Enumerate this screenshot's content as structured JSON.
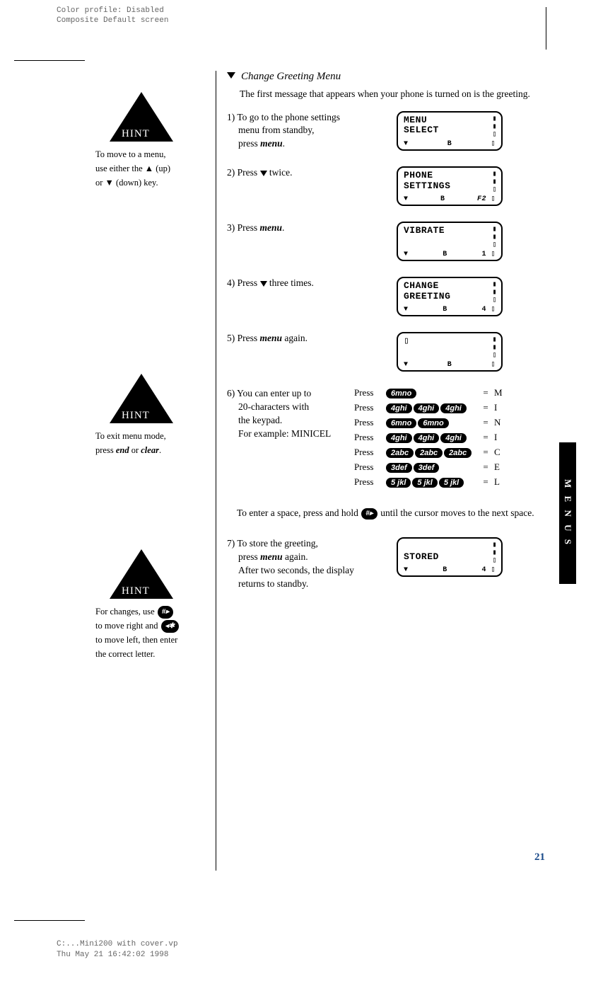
{
  "header": {
    "line1": "Color profile: Disabled",
    "line2": "Composite  Default screen"
  },
  "hints": {
    "label": "HINT",
    "h1_l1": "To move to a menu,",
    "h1_l2": "use either the ▲ (up)",
    "h1_l3": "or ▼ (down) key.",
    "h2_l1": "To exit menu mode,",
    "h2_l2_a": "press ",
    "h2_l2_b": "end",
    "h2_l2_c": " or ",
    "h2_l2_d": "clear",
    "h2_l2_e": ".",
    "h3_l1": "For changes, use ",
    "h3_key1": "#▸",
    "h3_l2": "to move right and ",
    "h3_key2": "◂✱",
    "h3_l3": "to move left, then enter",
    "h3_l4": "the correct letter."
  },
  "title": "Change Greeting Menu",
  "intro": "The first message that appears when your phone is turned on is the greeting.",
  "steps": {
    "s1a": "1) To go to the phone settings",
    "s1b": "menu from standby,",
    "s1c_a": "press ",
    "s1c_b": "menu",
    "s1c_c": ".",
    "s2_a": "2) Press ",
    "s2_b": " twice.",
    "s3_a": "3) Press ",
    "s3_b": "menu",
    "s3_c": ".",
    "s4_a": "4) Press ",
    "s4_b": " three times.",
    "s5_a": "5) Press ",
    "s5_b": "menu",
    "s5_c": " again.",
    "s6a": "6) You can enter up to",
    "s6b": "20-characters with",
    "s6c": "the keypad.",
    "s6d": "For example: MINICEL",
    "space_a": "To enter a space, press and hold ",
    "space_key": "#▸",
    "space_b": " until the cursor moves to the next space.",
    "s7a": "7) To store the greeting,",
    "s7b_a": "press ",
    "s7b_b": "menu",
    "s7b_c": " again.",
    "s7c": "After two seconds, the display",
    "s7d": "returns to standby."
  },
  "lcd": {
    "l1_1": "MENU",
    "l1_2": "SELECT",
    "l2_1": "PHONE",
    "l2_2": "SETTINGS",
    "l2_r": "F2",
    "l3_1": "VIBRATE",
    "l3_r": "1",
    "l4_1": "CHANGE",
    "l4_2": "GREETING",
    "l4_r": "4",
    "l5_1": "",
    "l7_1": "STORED",
    "l7_r": "4",
    "B": "B",
    "ant": "▼"
  },
  "keypad": {
    "press": "Press",
    "eq": "=",
    "k6": "6mno",
    "k4": "4ghi",
    "k2": "2abc",
    "k3": "3def",
    "k5": "5 jkl",
    "M": "M",
    "I": "I",
    "N": "N",
    "C": "C",
    "E": "E",
    "L": "L"
  },
  "tab": "M E N U S",
  "pagenum": "21",
  "footer": {
    "line1": "C:...Mini200 with cover.vp",
    "line2": "Thu May 21 16:42:02 1998"
  }
}
